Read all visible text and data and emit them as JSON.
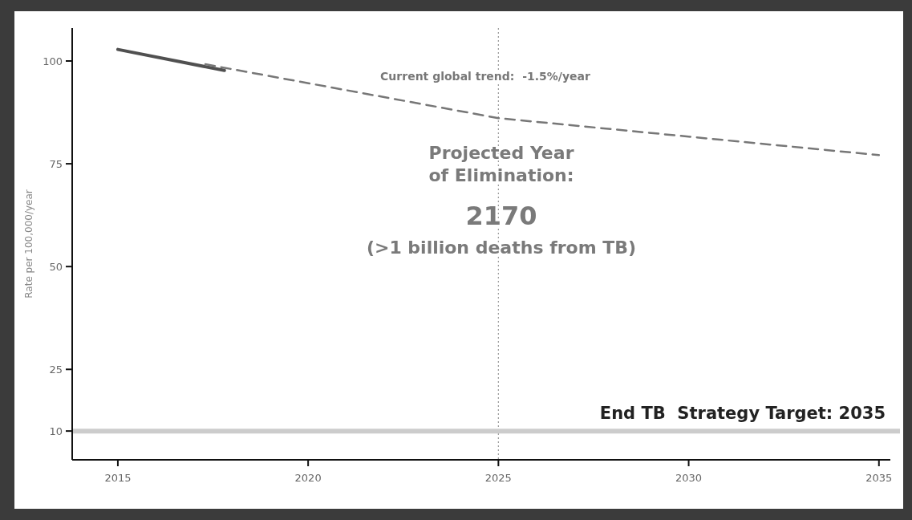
{
  "chart_data": {
    "type": "line",
    "ylabel": "Rate per 100,000/year",
    "xlim": [
      2013.8,
      2035.3
    ],
    "xticks": [
      2015,
      2020,
      2025,
      2030,
      2035
    ],
    "ylim": [
      3,
      108
    ],
    "yticks": [
      10,
      25,
      50,
      75,
      100
    ],
    "grid": false,
    "marker": "none",
    "series": [
      {
        "color": "#505050",
        "x": [
          2015,
          2017.8
        ],
        "values": [
          102.8,
          97.7
        ],
        "line_style": "solid"
      },
      {
        "color": "#777777",
        "x": [
          2017.3,
          2025,
          2035
        ],
        "values": [
          99.2,
          86.1,
          77.1
        ],
        "line_style": "dashed"
      }
    ],
    "ref_lines": [
      {
        "axis": "x",
        "value": 2025,
        "label": null,
        "line_style": "dotted",
        "color": "#999999"
      },
      {
        "axis": "y",
        "value": 10,
        "label": null,
        "line_style": "solid",
        "color": "#cccccc"
      }
    ],
    "annotations": [
      "Current global trend:  -1.5%/year",
      "Projected Year of Elimination:",
      "2170",
      "(>1 billion deaths from TB)",
      "End TB  Strategy Target: 2035"
    ]
  }
}
